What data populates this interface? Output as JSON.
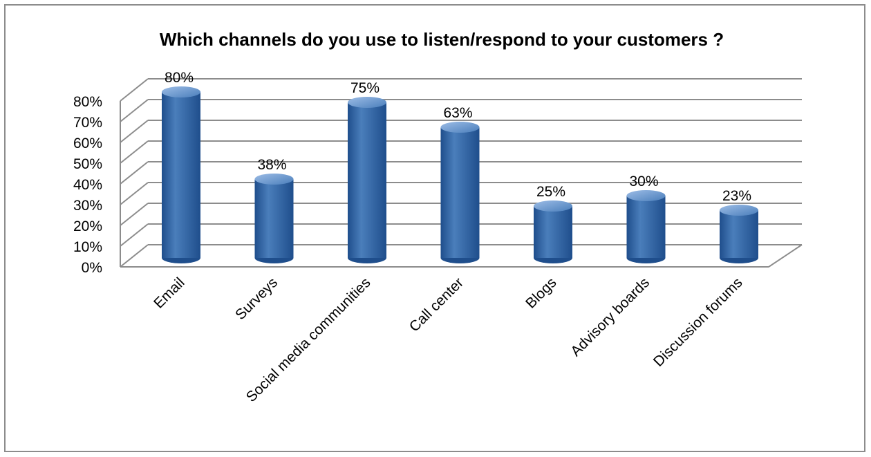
{
  "chart_data": {
    "type": "bar",
    "title": "Which channels do you use to listen/respond to your customers ?",
    "xlabel": "",
    "ylabel": "",
    "categories": [
      "Email",
      "Surveys",
      "Social media communities",
      "Call center",
      "Blogs",
      "Advisory boards",
      "Discussion forums"
    ],
    "values": [
      80,
      38,
      75,
      63,
      25,
      30,
      23
    ],
    "data_labels": [
      "80%",
      "38%",
      "75%",
      "63%",
      "25%",
      "30%",
      "23%"
    ],
    "y_ticks": [
      "0%",
      "10%",
      "20%",
      "30%",
      "40%",
      "50%",
      "60%",
      "70%",
      "80%"
    ],
    "ylim": [
      0,
      80
    ],
    "style": "3d-cylinder",
    "grid": true,
    "legend": "none",
    "bar_color": "#4a7ebb",
    "bar_dark_color": "#1f4e8c",
    "bar_light_color": "#9dbde6"
  }
}
